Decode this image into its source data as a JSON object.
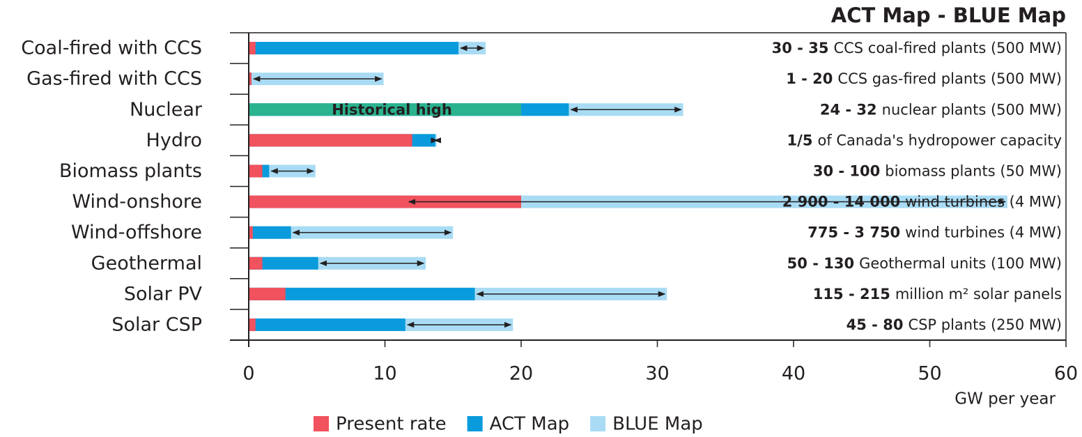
{
  "chart_data": {
    "type": "bar",
    "orientation": "horizontal",
    "title": "ACT Map - BLUE Map",
    "x_label": "GW per year",
    "categories": [
      "Coal-fired with CCS",
      "Gas-fired with CCS",
      "Nuclear",
      "Hydro",
      "Biomass plants",
      "Wind-onshore",
      "Wind-offshore",
      "Geothermal",
      "Solar PV",
      "Solar CSP"
    ],
    "series": [
      {
        "name": "BLUE Map",
        "color": "#a9dcf4",
        "values": [
          17.4,
          9.9,
          31.9,
          13.8,
          4.9,
          55.7,
          15.0,
          13.0,
          30.7,
          19.4
        ]
      },
      {
        "name": "ACT Map",
        "color": "#0a9bdc",
        "values": [
          15.4,
          0.2,
          23.5,
          13.7,
          1.5,
          11.6,
          3.1,
          5.1,
          16.6,
          11.5
        ]
      },
      {
        "name": "Present rate",
        "color": "#f0525e",
        "values": [
          0.5,
          0.2,
          null,
          12.0,
          1.0,
          20.0,
          0.3,
          1.0,
          2.7,
          0.5
        ]
      }
    ],
    "historical_high": {
      "label": "Historical high",
      "category": 2,
      "value": 20,
      "color": "#2bb38f"
    },
    "annotations": [
      {
        "bold": "30 - 35",
        "text": "CCS coal-fired plants (500 MW)"
      },
      {
        "bold": "1 - 20",
        "text": "CCS gas-fired plants (500 MW)"
      },
      {
        "bold": "24 - 32",
        "text": "nuclear plants (500 MW)"
      },
      {
        "bold": "1/5",
        "text": "of Canada's hydropower capacity"
      },
      {
        "bold": "30 - 100",
        "text": "biomass plants (50 MW)"
      },
      {
        "bold": "2 900 - 14 000",
        "text": "wind turbines (4 MW)"
      },
      {
        "bold": "775 - 3 750",
        "text": "wind turbines (4 MW)"
      },
      {
        "bold": "50 - 130",
        "text": "Geothermal units (100 MW)"
      },
      {
        "bold": "115 - 215",
        "text": "million m² solar panels"
      },
      {
        "bold": "45 - 80",
        "text": "CSP plants (250 MW)"
      }
    ],
    "xlim": [
      0,
      60
    ],
    "xticks": [
      0,
      10,
      20,
      30,
      40,
      50,
      60
    ],
    "legend_order": [
      2,
      1,
      0
    ]
  }
}
